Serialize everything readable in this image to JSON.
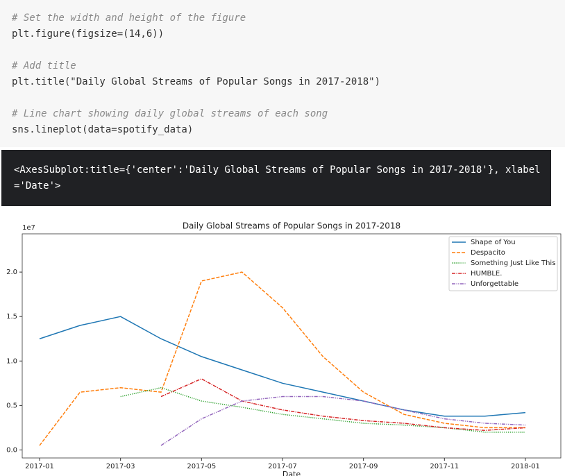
{
  "code_lines": [
    "# Set the width and height of the figure",
    "plt.figure(figsize=(14,6))",
    "# Add title",
    "plt.title(\"Daily Global Streams of Popular Songs in 2017-2018\")",
    "# Line chart showing daily global streams of each song",
    "sns.lineplot(data=spotify_data)"
  ],
  "output_text": "<AxesSubplot:title={'center':'Daily Global Streams of Popular Songs in 2017-2018'}, xlabel ='Date'>",
  "chart_data": {
    "type": "line",
    "title": "Daily Global Streams of Popular Songs in 2017-2018",
    "x_label": "Date",
    "y_offset_label": "1e7",
    "x": [
      "2017-01",
      "2017-02",
      "2017-03",
      "2017-04",
      "2017-05",
      "2017-06",
      "2017-07",
      "2017-08",
      "2017-09",
      "2017-10",
      "2017-11",
      "2017-12",
      "2018-01"
    ],
    "xticks": [
      "2017-01",
      "2017-03",
      "2017-05",
      "2017-07",
      "2017-09",
      "2017-11",
      "2018-01"
    ],
    "ylim": [
      -0.09,
      2.43
    ],
    "yticks": [
      {
        "value": 0,
        "label": "0.0"
      },
      {
        "value": 0.5,
        "label": "0.5"
      },
      {
        "value": 1,
        "label": "1.0"
      },
      {
        "value": 1.5,
        "label": "1.5"
      },
      {
        "value": 2,
        "label": "2.0"
      }
    ],
    "legend": "upper right",
    "series": [
      {
        "name": "Shape of You",
        "color": "#1f77b4",
        "dash": "solid",
        "values": [
          1.25,
          1.4,
          1.5,
          1.25,
          1.05,
          0.9,
          0.75,
          0.65,
          0.55,
          0.45,
          0.38,
          0.38,
          0.42
        ]
      },
      {
        "name": "Despacito",
        "color": "#ff7f0e",
        "dash": "dashed",
        "values": [
          0.05,
          0.65,
          0.7,
          0.65,
          1.9,
          2.0,
          1.6,
          1.05,
          0.65,
          0.4,
          0.3,
          0.25,
          0.25
        ]
      },
      {
        "name": "Something Just Like This",
        "color": "#2ca02c",
        "dash": "dotted",
        "values": [
          null,
          null,
          0.6,
          0.7,
          0.55,
          0.48,
          0.4,
          0.35,
          0.3,
          0.28,
          0.25,
          0.2,
          0.2
        ]
      },
      {
        "name": "HUMBLE.",
        "color": "#d62728",
        "dash": "dashdot",
        "values": [
          null,
          null,
          null,
          0.6,
          0.8,
          0.55,
          0.45,
          0.38,
          0.33,
          0.3,
          0.25,
          0.22,
          0.25
        ]
      },
      {
        "name": "Unforgettable",
        "color": "#9467bd",
        "dash": "dashdotdot",
        "values": [
          null,
          null,
          null,
          0.05,
          0.35,
          0.55,
          0.6,
          0.6,
          0.55,
          0.45,
          0.35,
          0.3,
          0.28
        ]
      }
    ]
  }
}
